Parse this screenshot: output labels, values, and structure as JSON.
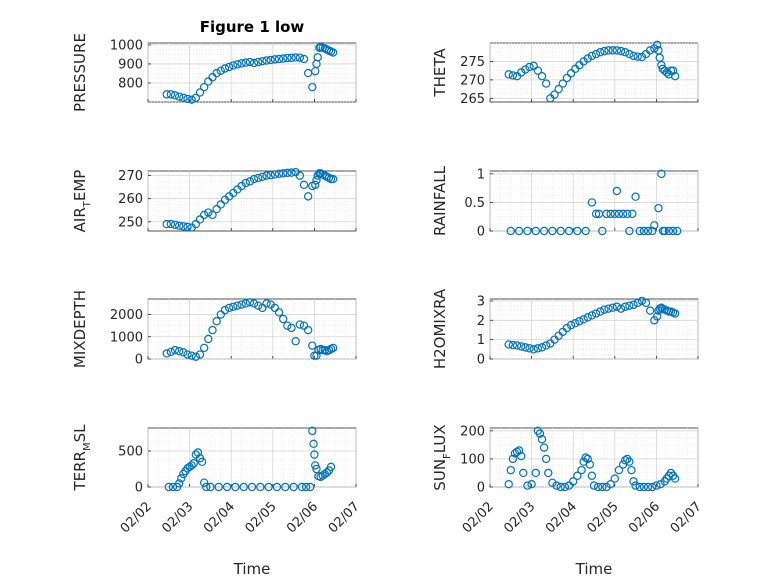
{
  "figure": {
    "title": "Figure 1 low",
    "xlabel": "Time",
    "marker_color": "#0072BD",
    "date_ticks": [
      "02/02",
      "02/03",
      "02/04",
      "02/05",
      "02/06",
      "02/07"
    ]
  },
  "chart_data": [
    {
      "type": "scatter",
      "id": "pressure",
      "title": "Figure 1 low",
      "ylabel": "PRESSURE",
      "xlim": [
        0,
        5
      ],
      "ylim": [
        700,
        1010
      ],
      "yticks": [
        800,
        900,
        1000
      ],
      "grid": true,
      "x": [
        0.45,
        0.55,
        0.65,
        0.75,
        0.85,
        0.95,
        1.05,
        1.15,
        1.25,
        1.35,
        1.45,
        1.55,
        1.65,
        1.75,
        1.85,
        1.95,
        2.05,
        2.15,
        2.25,
        2.35,
        2.45,
        2.55,
        2.65,
        2.75,
        2.85,
        2.95,
        3.05,
        3.15,
        3.25,
        3.35,
        3.45,
        3.55,
        3.65,
        3.75,
        3.85,
        3.95,
        4.02,
        4.05,
        4.08,
        4.12,
        4.15,
        4.2,
        4.25,
        4.3,
        4.35,
        4.4,
        4.45
      ],
      "y": [
        740,
        740,
        735,
        728,
        722,
        716,
        712,
        722,
        750,
        778,
        808,
        830,
        852,
        864,
        876,
        884,
        892,
        898,
        903,
        907,
        910,
        905,
        910,
        914,
        918,
        921,
        924,
        926,
        928,
        931,
        932,
        934,
        933,
        926,
        852,
        778,
        862,
        900,
        935,
        985,
        988,
        985,
        982,
        975,
        970,
        965,
        960
      ]
    },
    {
      "type": "scatter",
      "id": "theta",
      "ylabel": "THETA",
      "xlim": [
        0,
        5
      ],
      "ylim": [
        264,
        280
      ],
      "yticks": [
        265,
        270,
        275
      ],
      "grid": true,
      "x": [
        0.45,
        0.55,
        0.65,
        0.75,
        0.85,
        0.95,
        1.05,
        1.15,
        1.25,
        1.35,
        1.45,
        1.55,
        1.65,
        1.75,
        1.85,
        1.95,
        2.05,
        2.15,
        2.25,
        2.35,
        2.45,
        2.55,
        2.65,
        2.75,
        2.85,
        2.95,
        3.05,
        3.15,
        3.25,
        3.35,
        3.45,
        3.55,
        3.65,
        3.75,
        3.85,
        3.95,
        4.02,
        4.05,
        4.08,
        4.12,
        4.15,
        4.2,
        4.25,
        4.3,
        4.35,
        4.4,
        4.45
      ],
      "y": [
        271.5,
        271.2,
        271,
        272,
        272.8,
        273.5,
        273.8,
        272.5,
        271,
        269,
        265,
        266,
        267.5,
        269,
        270.5,
        271.8,
        273,
        274,
        275,
        275.8,
        276.5,
        277,
        277.5,
        277.8,
        278,
        278,
        278,
        277.8,
        277.5,
        277,
        276.5,
        276.3,
        276.2,
        277,
        278,
        278.5,
        279.5,
        278,
        276,
        274,
        273,
        272.5,
        272,
        271.5,
        272.5,
        272.5,
        271
      ]
    },
    {
      "type": "scatter",
      "id": "air-temp",
      "ylabel": "AIR_TEMP",
      "ylabel_main": "AIR",
      "ylabel_sub": "T",
      "ylabel_rest": "EMP",
      "xlim": [
        0,
        5
      ],
      "ylim": [
        246,
        272
      ],
      "yticks": [
        250,
        260,
        270
      ],
      "grid": true,
      "x": [
        0.45,
        0.55,
        0.65,
        0.75,
        0.85,
        0.95,
        1.05,
        1.15,
        1.25,
        1.35,
        1.45,
        1.55,
        1.65,
        1.75,
        1.85,
        1.95,
        2.05,
        2.15,
        2.25,
        2.35,
        2.45,
        2.55,
        2.65,
        2.75,
        2.85,
        2.95,
        3.05,
        3.15,
        3.25,
        3.35,
        3.45,
        3.55,
        3.65,
        3.75,
        3.85,
        3.95,
        4.02,
        4.05,
        4.08,
        4.12,
        4.15,
        4.2,
        4.25,
        4.3,
        4.35,
        4.4,
        4.45
      ],
      "y": [
        249,
        249,
        248.7,
        248.3,
        248,
        247.8,
        247.5,
        249,
        251,
        253,
        254,
        253,
        255.5,
        257.5,
        259.5,
        261,
        262.5,
        264,
        265.5,
        266.8,
        267.5,
        268.5,
        269,
        269.5,
        270,
        270.2,
        270.5,
        270.8,
        271,
        271.2,
        271.3,
        271.5,
        270,
        266,
        261,
        265.5,
        266,
        268,
        270,
        271,
        271,
        270.5,
        270,
        269.5,
        269,
        268.5,
        268.5
      ]
    },
    {
      "type": "scatter",
      "id": "rainfall",
      "ylabel": "RAINFALL",
      "xlim": [
        0,
        5
      ],
      "ylim": [
        0,
        1.05
      ],
      "yticks": [
        0,
        0.5,
        1
      ],
      "grid": true,
      "x": [
        0.5,
        0.7,
        0.9,
        1.1,
        1.3,
        1.5,
        1.7,
        1.9,
        2.1,
        2.3,
        2.45,
        2.55,
        2.62,
        2.7,
        2.8,
        2.9,
        3.0,
        3.05,
        3.1,
        3.2,
        3.3,
        3.35,
        3.42,
        3.5,
        3.6,
        3.7,
        3.8,
        3.9,
        3.95,
        4.05,
        4.12,
        4.16,
        4.2,
        4.3,
        4.4,
        4.5
      ],
      "y": [
        0,
        0,
        0,
        0,
        0,
        0,
        0,
        0,
        0,
        0,
        0.5,
        0.3,
        0.3,
        0,
        0.3,
        0.3,
        0.3,
        0.7,
        0.3,
        0.3,
        0.3,
        0,
        0.3,
        0.6,
        0,
        0,
        0,
        0,
        0.1,
        0.4,
        1.0,
        0,
        0,
        0,
        0,
        0
      ]
    },
    {
      "type": "scatter",
      "id": "mixdepth",
      "ylabel": "MIXDEPTH",
      "xlim": [
        0,
        5
      ],
      "ylim": [
        0,
        2700
      ],
      "yticks": [
        0,
        1000,
        2000
      ],
      "grid": true,
      "x": [
        0.45,
        0.55,
        0.65,
        0.75,
        0.85,
        0.95,
        1.05,
        1.15,
        1.25,
        1.35,
        1.45,
        1.55,
        1.65,
        1.75,
        1.85,
        1.95,
        2.05,
        2.15,
        2.25,
        2.35,
        2.45,
        2.55,
        2.65,
        2.75,
        2.85,
        2.95,
        3.05,
        3.15,
        3.25,
        3.35,
        3.45,
        3.55,
        3.65,
        3.75,
        3.85,
        3.95,
        4.0,
        4.05,
        4.1,
        4.15,
        4.2,
        4.25,
        4.3,
        4.35,
        4.4,
        4.45
      ],
      "y": [
        250,
        320,
        400,
        350,
        300,
        200,
        150,
        100,
        200,
        500,
        900,
        1300,
        1700,
        2000,
        2200,
        2300,
        2350,
        2400,
        2450,
        2500,
        2550,
        2500,
        2400,
        2300,
        2500,
        2450,
        2300,
        2100,
        1800,
        1500,
        1400,
        800,
        1550,
        1500,
        1300,
        600,
        150,
        150,
        400,
        450,
        400,
        400,
        350,
        400,
        450,
        500
      ]
    },
    {
      "type": "scatter",
      "id": "h2omixra",
      "ylabel": "H2OMIXRA",
      "xlim": [
        0,
        5
      ],
      "ylim": [
        0,
        3.1
      ],
      "yticks": [
        0,
        1,
        2,
        3
      ],
      "grid": true,
      "x": [
        0.45,
        0.55,
        0.65,
        0.75,
        0.85,
        0.95,
        1.05,
        1.15,
        1.25,
        1.35,
        1.45,
        1.55,
        1.65,
        1.75,
        1.85,
        1.95,
        2.05,
        2.15,
        2.25,
        2.35,
        2.45,
        2.55,
        2.65,
        2.75,
        2.85,
        2.95,
        3.05,
        3.15,
        3.25,
        3.35,
        3.45,
        3.55,
        3.65,
        3.75,
        3.85,
        3.95,
        4.02,
        4.05,
        4.08,
        4.12,
        4.15,
        4.2,
        4.25,
        4.3,
        4.35,
        4.4,
        4.45
      ],
      "y": [
        0.75,
        0.72,
        0.7,
        0.65,
        0.6,
        0.55,
        0.5,
        0.55,
        0.6,
        0.7,
        0.8,
        1.0,
        1.2,
        1.4,
        1.6,
        1.75,
        1.85,
        1.95,
        2.05,
        2.15,
        2.25,
        2.35,
        2.45,
        2.55,
        2.6,
        2.65,
        2.7,
        2.6,
        2.7,
        2.75,
        2.8,
        2.9,
        3.0,
        2.9,
        2.5,
        2.0,
        2.2,
        2.5,
        2.6,
        2.65,
        2.6,
        2.55,
        2.5,
        2.45,
        2.45,
        2.4,
        2.35
      ]
    },
    {
      "type": "scatter",
      "id": "terr-msl",
      "ylabel": "TERR_MSL",
      "ylabel_main": "TERR",
      "ylabel_sub": "M",
      "ylabel_rest": "SL",
      "xlim": [
        0,
        5
      ],
      "ylim": [
        0,
        820
      ],
      "yticks": [
        0,
        500
      ],
      "grid": true,
      "x": [
        0.5,
        0.6,
        0.7,
        0.75,
        0.8,
        0.85,
        0.9,
        0.95,
        1.0,
        1.05,
        1.1,
        1.15,
        1.2,
        1.25,
        1.3,
        1.35,
        1.4,
        1.5,
        1.7,
        1.9,
        2.1,
        2.3,
        2.5,
        2.7,
        2.9,
        3.1,
        3.3,
        3.5,
        3.7,
        3.8,
        3.9,
        3.95,
        3.98,
        4.0,
        4.02,
        4.05,
        4.1,
        4.15,
        4.2,
        4.25,
        4.3,
        4.35,
        4.4
      ],
      "y": [
        0,
        0,
        0,
        50,
        120,
        180,
        220,
        260,
        280,
        300,
        330,
        450,
        480,
        400,
        350,
        60,
        0,
        0,
        0,
        0,
        0,
        0,
        0,
        0,
        0,
        0,
        0,
        0,
        0,
        0,
        0,
        780,
        600,
        450,
        300,
        250,
        150,
        140,
        160,
        180,
        200,
        230,
        280
      ]
    },
    {
      "type": "scatter",
      "id": "sun-flux",
      "ylabel": "SUN_FLUX",
      "ylabel_main": "SUN",
      "ylabel_sub": "F",
      "ylabel_rest": "LUX",
      "xlim": [
        0,
        5
      ],
      "ylim": [
        0,
        210
      ],
      "yticks": [
        0,
        100,
        200
      ],
      "grid": true,
      "x": [
        0.45,
        0.5,
        0.55,
        0.6,
        0.65,
        0.7,
        0.75,
        0.8,
        0.9,
        1.0,
        1.1,
        1.15,
        1.2,
        1.25,
        1.3,
        1.35,
        1.4,
        1.5,
        1.6,
        1.7,
        1.8,
        1.9,
        2.0,
        2.1,
        2.2,
        2.25,
        2.3,
        2.35,
        2.4,
        2.45,
        2.5,
        2.6,
        2.7,
        2.8,
        2.9,
        3.0,
        3.1,
        3.2,
        3.25,
        3.3,
        3.35,
        3.4,
        3.45,
        3.5,
        3.6,
        3.7,
        3.8,
        3.9,
        4.0,
        4.1,
        4.2,
        4.25,
        4.3,
        4.35,
        4.4,
        4.45
      ],
      "y": [
        10,
        60,
        100,
        120,
        125,
        130,
        110,
        50,
        5,
        10,
        50,
        200,
        190,
        170,
        140,
        100,
        50,
        15,
        5,
        0,
        0,
        5,
        20,
        40,
        60,
        90,
        105,
        100,
        80,
        40,
        5,
        0,
        0,
        0,
        10,
        30,
        60,
        80,
        95,
        100,
        90,
        60,
        20,
        5,
        0,
        0,
        0,
        0,
        5,
        10,
        20,
        30,
        40,
        50,
        40,
        30
      ]
    }
  ]
}
